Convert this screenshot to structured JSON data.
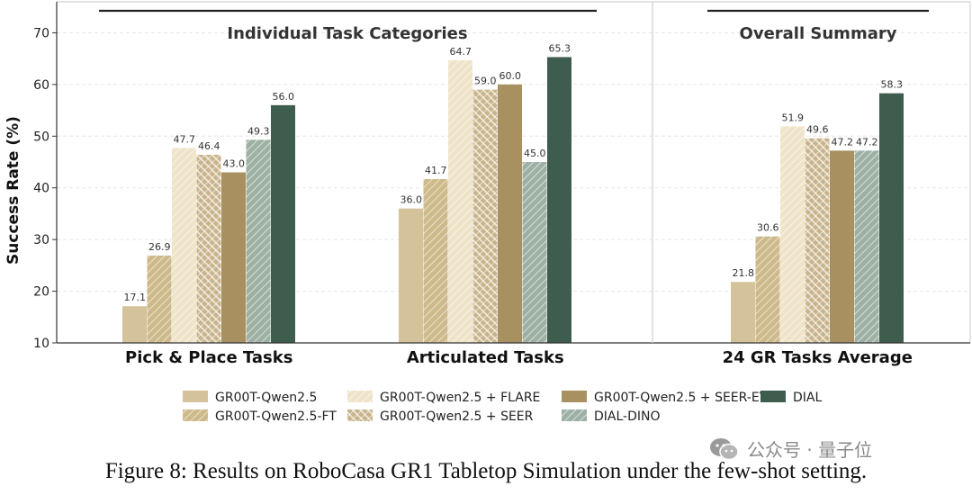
{
  "colors": {
    "GR00T-Qwen2.5": "#d4c39a",
    "GR00T-Qwen2.5-FT": "#cdb98a",
    "GR00T-Qwen2.5 + FLARE": "#efe3c8",
    "GR00T-Qwen2.5 + SEER": "#c8b38a",
    "GR00T-Qwen2.5 + SEER-EV": "#a89060",
    "DIAL-DINO": "#9db0a4",
    "DIAL": "#3e5d4f"
  },
  "chart_data": {
    "type": "bar",
    "panels": [
      {
        "title": "Individual Task Categories",
        "categories": [
          "Pick & Place Tasks",
          "Articulated Tasks"
        ]
      },
      {
        "title": "Overall Summary",
        "categories": [
          "24 GR Tasks Average"
        ]
      }
    ],
    "categories": [
      "Pick & Place Tasks",
      "Articulated Tasks",
      "24 GR Tasks Average"
    ],
    "series": [
      {
        "name": "GR00T-Qwen2.5",
        "values": [
          17.1,
          36.0,
          21.8
        ],
        "pattern": "solid"
      },
      {
        "name": "GR00T-Qwen2.5-FT",
        "values": [
          26.9,
          41.7,
          30.6
        ],
        "pattern": "diag"
      },
      {
        "name": "GR00T-Qwen2.5 + FLARE",
        "values": [
          47.7,
          64.7,
          51.9
        ],
        "pattern": "diag"
      },
      {
        "name": "GR00T-Qwen2.5 + SEER",
        "values": [
          46.4,
          59.0,
          49.6
        ],
        "pattern": "cross"
      },
      {
        "name": "GR00T-Qwen2.5 + SEER-EV",
        "values": [
          43.0,
          60.0,
          47.2
        ],
        "pattern": "solid"
      },
      {
        "name": "DIAL-DINO",
        "values": [
          49.3,
          45.0,
          47.2
        ],
        "pattern": "diag"
      },
      {
        "name": "DIAL",
        "values": [
          56.0,
          65.3,
          58.3
        ],
        "pattern": "solid"
      }
    ],
    "value_labels": [
      [
        "17.1",
        "36.0",
        "21.8"
      ],
      [
        "26.9",
        "41.7",
        "30.6"
      ],
      [
        "47.7",
        "64.7",
        "51.9"
      ],
      [
        "46.4",
        "59.0",
        "49.6"
      ],
      [
        "43.0",
        "60.0",
        "47.2"
      ],
      [
        "49.3",
        "45.0",
        "47.2"
      ],
      [
        "56.0",
        "65.3",
        "58.3"
      ]
    ],
    "ylabel": "Success Rate (%)",
    "ylim": [
      10,
      76
    ],
    "yticks": [
      "10",
      "20",
      "30",
      "40",
      "50",
      "60",
      "70"
    ],
    "grid": true,
    "legend_position": "bottom"
  },
  "caption": "Figure 8:  Results on RoboCasa GR1 Tabletop Simulation under the few-shot setting.",
  "watermark": {
    "text": "公众号 · 量子位",
    "icon": "wechat-icon"
  }
}
